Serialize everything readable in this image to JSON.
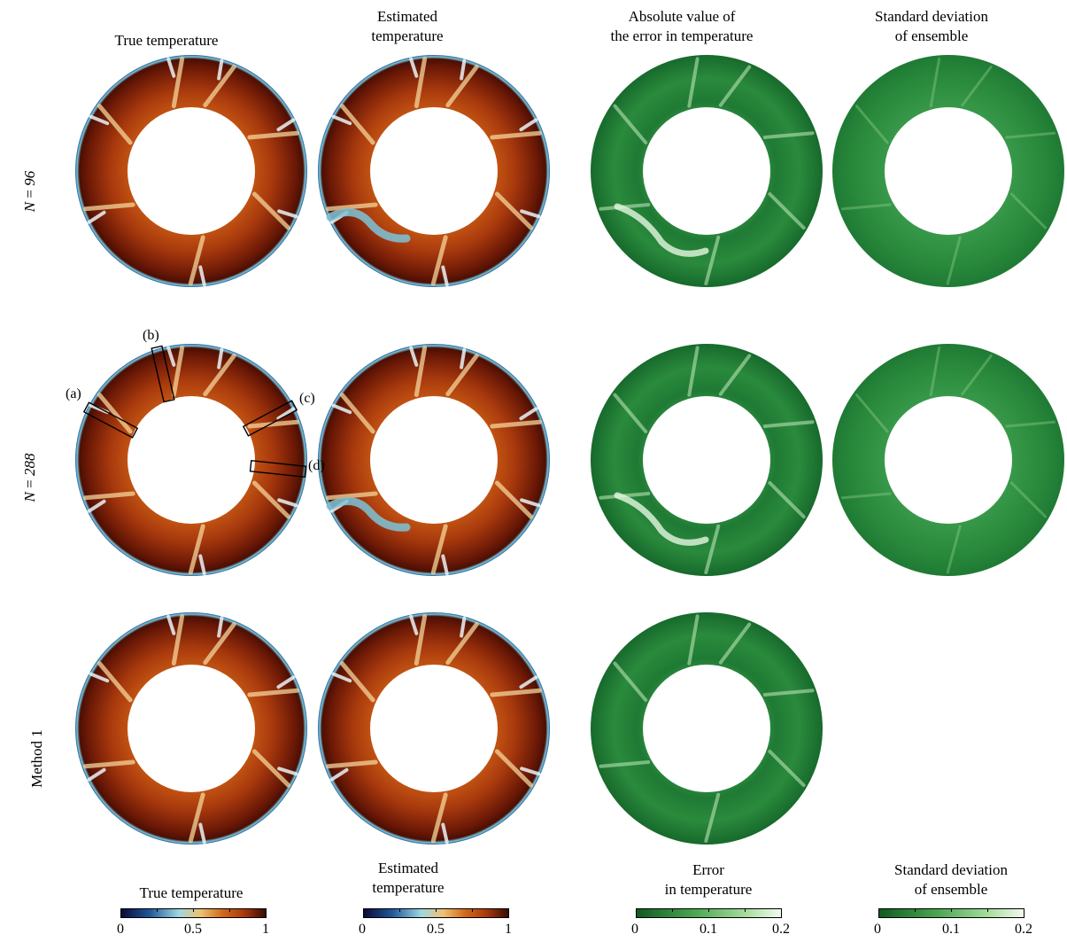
{
  "column_titles": {
    "c1": "True temperature",
    "c2": "Estimated\ntemperature",
    "c3": "Absolute value of\nthe error in temperature",
    "c4": "Standard deviation\nof ensemble"
  },
  "row_labels": {
    "r1_var": "N",
    "r1_eq": " = ",
    "r1_val": "96",
    "r2_var": "N",
    "r2_eq": " = ",
    "r2_val": "288",
    "r3": "Method 1"
  },
  "markers": {
    "a": "(a)",
    "b": "(b)",
    "c": "(c)",
    "d": "(d)"
  },
  "colorbars": {
    "temp_true": {
      "title": "True temperature",
      "ticks": [
        "0",
        "0.5",
        "1"
      ]
    },
    "temp_est": {
      "title": "Estimated\ntemperature",
      "ticks": [
        "0",
        "0.5",
        "1"
      ]
    },
    "error": {
      "title": "Error\nin temperature",
      "ticks": [
        "0",
        "0.1",
        "0.2"
      ]
    },
    "std": {
      "title": "Standard deviation\nof ensemble",
      "ticks": [
        "0",
        "0.1",
        "0.2"
      ]
    }
  },
  "colors": {
    "temp_dark": "#5a1204",
    "temp_main": "#a8390d",
    "temp_light": "#d98a2a",
    "temp_outer_edge": "#1f5a9a",
    "temp_cold_plume": "#7cc4d8",
    "green_dark": "#0f5a22",
    "green_main": "#2a8a3c",
    "green_light": "#bfe6b4"
  }
}
